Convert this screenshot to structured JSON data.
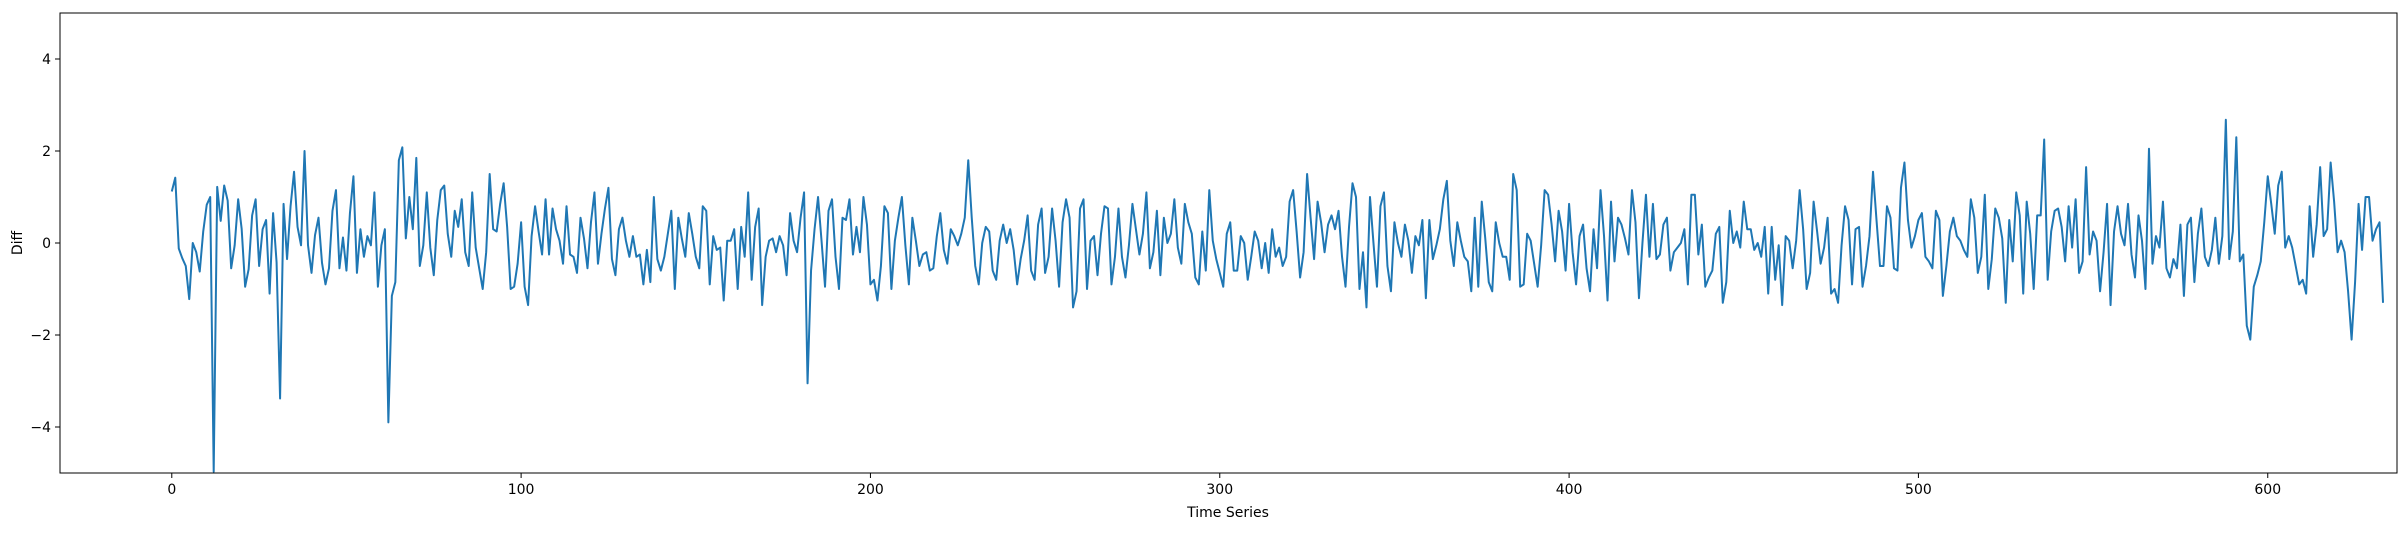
{
  "chart_data": {
    "type": "line",
    "title": "",
    "xlabel": "Time Series",
    "ylabel": "Diff",
    "xlim": [
      -32,
      637
    ],
    "ylim": [
      -5,
      5
    ],
    "xticks": [
      0,
      100,
      200,
      300,
      400,
      500,
      600
    ],
    "yticks": [
      -4,
      -2,
      0,
      2,
      4
    ],
    "grid": false,
    "legend": "none",
    "colors": {
      "line": "#1f77b4",
      "axes": "#000000",
      "background": "#ffffff"
    },
    "series": [
      {
        "values": [
          1.12,
          1.42,
          -0.12,
          -0.33,
          -0.5,
          -1.22,
          0.0,
          -0.2,
          -0.62,
          0.25,
          0.83,
          1.0,
          -4.97,
          1.22,
          0.48,
          1.25,
          0.92,
          -0.55,
          -0.05,
          0.95,
          0.31,
          -0.95,
          -0.57,
          0.6,
          0.95,
          -0.5,
          0.3,
          0.5,
          -1.1,
          0.65,
          -0.42,
          -3.38,
          0.85,
          -0.35,
          0.8,
          1.55,
          0.35,
          -0.05,
          2.0,
          -0.05,
          -0.65,
          0.17,
          0.55,
          -0.43,
          -0.9,
          -0.55,
          0.7,
          1.15,
          -0.55,
          0.12,
          -0.6,
          0.65,
          1.45,
          -0.65,
          0.3,
          -0.3,
          0.15,
          -0.05,
          1.1,
          -0.95,
          -0.05,
          0.3,
          -3.9,
          -1.15,
          -0.85,
          1.8,
          2.08,
          0.1,
          1.0,
          0.3,
          1.85,
          -0.5,
          -0.05,
          1.1,
          -0.1,
          -0.7,
          0.5,
          1.15,
          1.25,
          0.2,
          -0.3,
          0.7,
          0.35,
          0.95,
          -0.2,
          -0.5,
          1.1,
          -0.1,
          -0.55,
          -1.0,
          -0.2,
          1.5,
          0.3,
          0.25,
          0.85,
          1.3,
          0.35,
          -1.0,
          -0.95,
          -0.45,
          0.45,
          -0.95,
          -1.35,
          0.15,
          0.8,
          0.25,
          -0.25,
          0.95,
          -0.25,
          0.75,
          0.3,
          0.05,
          -0.45,
          0.8,
          -0.25,
          -0.3,
          -0.65,
          0.55,
          0.1,
          -0.55,
          0.45,
          1.1,
          -0.45,
          0.2,
          0.75,
          1.2,
          -0.35,
          -0.7,
          0.3,
          0.55,
          0.05,
          -0.3,
          0.15,
          -0.3,
          -0.25,
          -0.9,
          -0.15,
          -0.85,
          1.0,
          -0.35,
          -0.6,
          -0.3,
          0.2,
          0.7,
          -1.0,
          0.55,
          0.1,
          -0.3,
          0.65,
          0.2,
          -0.3,
          -0.55,
          0.8,
          0.7,
          -0.9,
          0.15,
          -0.15,
          -0.1,
          -1.25,
          0.05,
          0.05,
          0.3,
          -1.0,
          0.35,
          -0.3,
          1.1,
          -0.8,
          0.35,
          0.75,
          -1.35,
          -0.3,
          0.05,
          0.1,
          -0.2,
          0.15,
          -0.05,
          -0.7,
          0.65,
          0.05,
          -0.2,
          0.55,
          1.1,
          -3.05,
          -0.6,
          0.3,
          1.0,
          0.05,
          -0.95,
          0.7,
          0.95,
          -0.3,
          -1.0,
          0.55,
          0.5,
          0.95,
          -0.25,
          0.35,
          -0.2,
          1.0,
          0.4,
          -0.9,
          -0.8,
          -1.25,
          -0.5,
          0.8,
          0.65,
          -1.0,
          0.05,
          0.55,
          1.0,
          -0.05,
          -0.9,
          0.55,
          0.05,
          -0.5,
          -0.25,
          -0.2,
          -0.6,
          -0.55,
          0.15,
          0.65,
          -0.15,
          -0.45,
          0.3,
          0.15,
          -0.05,
          0.2,
          0.55,
          1.8,
          0.55,
          -0.5,
          -0.9,
          0.0,
          0.35,
          0.25,
          -0.6,
          -0.8,
          0.05,
          0.4,
          0.0,
          0.3,
          -0.15,
          -0.9,
          -0.35,
          0.05,
          0.6,
          -0.6,
          -0.8,
          0.4,
          0.75,
          -0.65,
          -0.3,
          0.75,
          0.05,
          -0.95,
          0.45,
          0.95,
          0.55,
          -1.4,
          -1.05,
          0.75,
          0.95,
          -1.0,
          0.05,
          0.15,
          -0.7,
          0.2,
          0.8,
          0.75,
          -0.9,
          -0.3,
          0.75,
          -0.3,
          -0.75,
          -0.05,
          0.85,
          0.3,
          -0.25,
          0.2,
          1.1,
          -0.55,
          -0.2,
          0.7,
          -0.7,
          0.55,
          0.0,
          0.2,
          0.95,
          -0.1,
          -0.45,
          0.85,
          0.45,
          0.2,
          -0.75,
          -0.9,
          0.25,
          -0.6,
          1.15,
          0.05,
          -0.35,
          -0.65,
          -0.95,
          0.2,
          0.45,
          -0.6,
          -0.6,
          0.15,
          0.0,
          -0.8,
          -0.3,
          0.25,
          0.05,
          -0.55,
          0.0,
          -0.65,
          0.3,
          -0.3,
          -0.1,
          -0.5,
          -0.3,
          0.9,
          1.15,
          0.25,
          -0.75,
          -0.2,
          1.5,
          0.55,
          -0.35,
          0.9,
          0.45,
          -0.2,
          0.4,
          0.6,
          0.3,
          0.7,
          -0.3,
          -0.95,
          0.35,
          1.3,
          1.0,
          -1.0,
          -0.2,
          -1.4,
          1.0,
          0.0,
          -0.95,
          0.8,
          1.1,
          -0.5,
          -1.05,
          0.45,
          0.0,
          -0.3,
          0.4,
          0.05,
          -0.65,
          0.15,
          -0.05,
          0.5,
          -1.2,
          0.5,
          -0.35,
          -0.05,
          0.3,
          0.95,
          1.35,
          0.05,
          -0.5,
          0.45,
          0.05,
          -0.3,
          -0.4,
          -1.05,
          0.55,
          -0.95,
          0.9,
          0.1,
          -0.85,
          -1.05,
          0.45,
          0.0,
          -0.3,
          -0.3,
          -0.8,
          1.5,
          1.15,
          -0.95,
          -0.9,
          0.2,
          0.05,
          -0.45,
          -0.95,
          -0.05,
          1.15,
          1.05,
          0.4,
          -0.4,
          0.7,
          0.25,
          -0.6,
          0.85,
          -0.2,
          -0.9,
          0.15,
          0.4,
          -0.55,
          -1.05,
          0.3,
          -0.55,
          1.15,
          0.15,
          -1.25,
          0.9,
          -0.4,
          0.55,
          0.4,
          0.1,
          -0.25,
          1.15,
          0.45,
          -1.2,
          0.0,
          1.05,
          -0.3,
          0.85,
          -0.35,
          -0.25,
          0.4,
          0.55,
          -0.6,
          -0.2,
          -0.1,
          0.0,
          0.3,
          -0.9,
          1.05,
          1.05,
          -0.25,
          0.4,
          -0.95,
          -0.75,
          -0.6,
          0.2,
          0.35,
          -1.3,
          -0.85,
          0.7,
          0.0,
          0.25,
          -0.1,
          0.9,
          0.3,
          0.3,
          -0.15,
          0.0,
          -0.3,
          0.35,
          -1.1,
          0.35,
          -0.8,
          -0.05,
          -1.35,
          0.15,
          0.05,
          -0.55,
          0.05,
          1.15,
          0.3,
          -1.0,
          -0.65,
          0.9,
          0.25,
          -0.45,
          -0.1,
          0.55,
          -1.1,
          -1.0,
          -1.3,
          -0.05,
          0.8,
          0.5,
          -0.9,
          0.3,
          0.35,
          -0.95,
          -0.5,
          0.15,
          1.55,
          0.5,
          -0.5,
          -0.5,
          0.8,
          0.55,
          -0.55,
          -0.6,
          1.2,
          1.75,
          0.5,
          -0.1,
          0.15,
          0.5,
          0.65,
          -0.3,
          -0.4,
          -0.55,
          0.7,
          0.5,
          -1.15,
          -0.5,
          0.25,
          0.55,
          0.15,
          0.05,
          -0.15,
          -0.3,
          0.95,
          0.55,
          -0.65,
          -0.3,
          1.05,
          -1.0,
          -0.35,
          0.75,
          0.55,
          0.1,
          -1.3,
          0.5,
          -0.4,
          1.1,
          0.6,
          -1.1,
          0.9,
          0.2,
          -1.0,
          0.6,
          0.6,
          2.25,
          -0.8,
          0.25,
          0.7,
          0.75,
          0.35,
          -0.4,
          0.8,
          -0.1,
          0.95,
          -0.65,
          -0.4,
          1.65,
          -0.25,
          0.25,
          0.05,
          -1.05,
          -0.2,
          0.85,
          -1.35,
          0.25,
          0.8,
          0.2,
          -0.05,
          0.85,
          -0.25,
          -0.75,
          0.6,
          0.05,
          -1.0,
          2.05,
          -0.45,
          0.15,
          -0.1,
          0.9,
          -0.55,
          -0.75,
          -0.35,
          -0.55,
          0.4,
          -1.15,
          0.4,
          0.55,
          -0.85,
          0.2,
          0.75,
          -0.3,
          -0.5,
          -0.15,
          0.55,
          -0.45,
          0.15,
          2.68,
          -0.35,
          0.25,
          2.3,
          -0.4,
          -0.25,
          -1.8,
          -2.1,
          -0.95,
          -0.7,
          -0.4,
          0.45,
          1.45,
          0.85,
          0.2,
          1.25,
          1.55,
          -0.1,
          0.15,
          -0.1,
          -0.5,
          -0.9,
          -0.8,
          -1.1,
          0.8,
          -0.3,
          0.4,
          1.65,
          0.15,
          0.3,
          1.75,
          0.9,
          -0.2,
          0.05,
          -0.2,
          -1.05,
          -2.1,
          -0.85,
          0.85,
          -0.15,
          1.0,
          1.0,
          0.05,
          0.3,
          0.45,
          -1.3
        ]
      }
    ]
  }
}
